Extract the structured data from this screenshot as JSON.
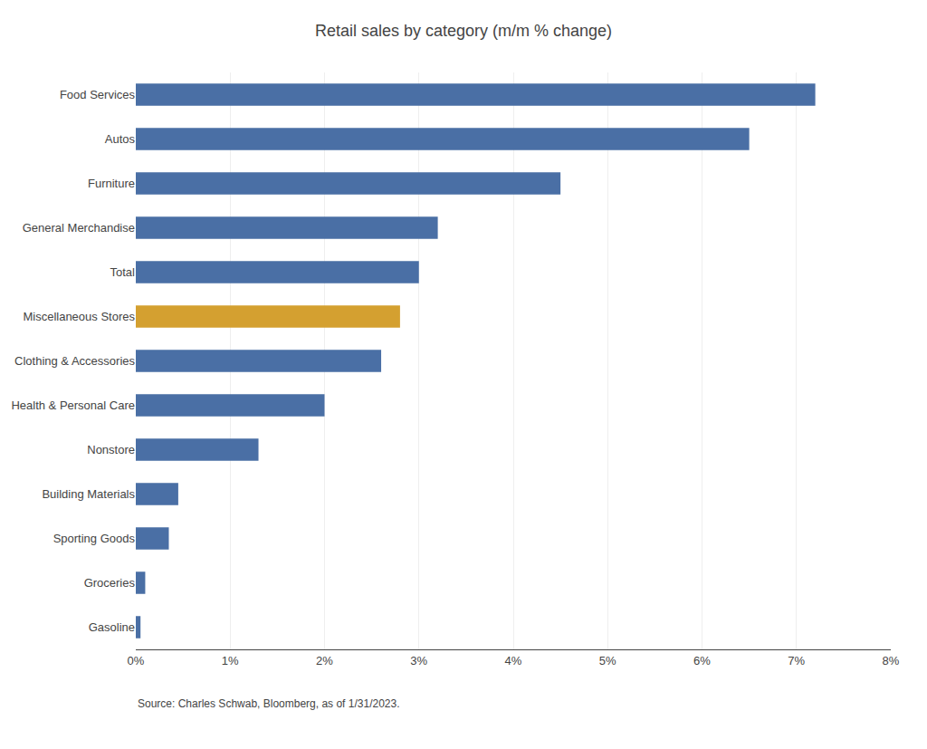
{
  "chart_data": {
    "type": "bar",
    "orientation": "horizontal",
    "title": "Retail sales by category (m/m % change)",
    "categories": [
      "Food Services",
      "Autos",
      "Furniture",
      "General Merchandise",
      "Total",
      "Miscellaneous Stores",
      "Clothing & Accessories",
      "Health & Personal Care",
      "Nonstore",
      "Building Materials",
      "Sporting Goods",
      "Groceries",
      "Gasoline"
    ],
    "values": [
      7.2,
      6.5,
      4.5,
      3.2,
      3.0,
      2.8,
      2.6,
      2.0,
      1.3,
      0.45,
      0.35,
      0.1,
      0.05
    ],
    "colors": [
      "#4A6FA5",
      "#4A6FA5",
      "#4A6FA5",
      "#4A6FA5",
      "#4A6FA5",
      "#D4A030",
      "#4A6FA5",
      "#4A6FA5",
      "#4A6FA5",
      "#4A6FA5",
      "#4A6FA5",
      "#4A6FA5",
      "#4A6FA5"
    ],
    "xlim": [
      0,
      8
    ],
    "xticks": [
      {
        "value": 0,
        "label": "0%"
      },
      {
        "value": 1,
        "label": "1%"
      },
      {
        "value": 2,
        "label": "2%"
      },
      {
        "value": 3,
        "label": "3%"
      },
      {
        "value": 4,
        "label": "4%"
      },
      {
        "value": 5,
        "label": "5%"
      },
      {
        "value": 6,
        "label": "6%"
      },
      {
        "value": 7,
        "label": "7%"
      },
      {
        "value": 8,
        "label": "8%"
      }
    ],
    "grid": true,
    "annotations": [
      "Source: Charles Schwab, Bloomberg, as of 1/31/2023."
    ]
  }
}
